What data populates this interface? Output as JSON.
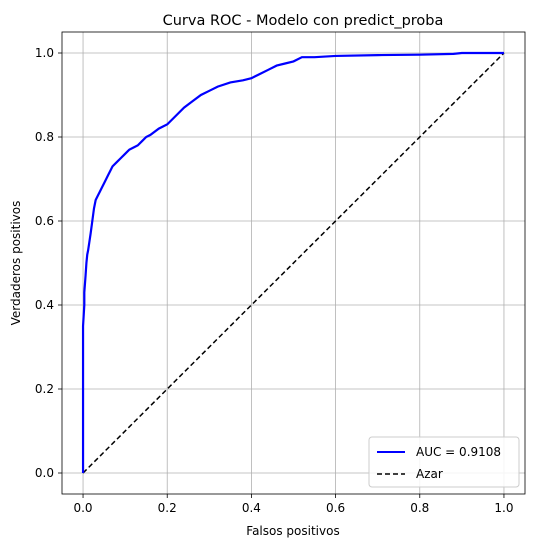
{
  "chart_data": {
    "type": "line",
    "title": "Curva ROC - Modelo con predict_proba",
    "xlabel": "Falsos positivos",
    "ylabel": "Verdaderos positivos",
    "xlim": [
      -0.05,
      1.05
    ],
    "ylim": [
      -0.05,
      1.05
    ],
    "xticks": [
      0.0,
      0.2,
      0.4,
      0.6,
      0.8,
      1.0
    ],
    "yticks": [
      0.0,
      0.2,
      0.4,
      0.6,
      0.8,
      1.0
    ],
    "xtick_labels": [
      "0.0",
      "0.2",
      "0.4",
      "0.6",
      "0.8",
      "1.0"
    ],
    "ytick_labels": [
      "0.0",
      "0.2",
      "0.4",
      "0.6",
      "0.8",
      "1.0"
    ],
    "grid": true,
    "legend_position": "lower-right",
    "series": [
      {
        "name": "AUC = 0.9108",
        "color": "#0000ff",
        "style": "solid",
        "x": [
          0.0,
          0.0,
          0.003,
          0.003,
          0.006,
          0.008,
          0.01,
          0.012,
          0.015,
          0.018,
          0.022,
          0.026,
          0.03,
          0.035,
          0.04,
          0.045,
          0.05,
          0.055,
          0.06,
          0.065,
          0.07,
          0.08,
          0.09,
          0.1,
          0.11,
          0.12,
          0.13,
          0.14,
          0.15,
          0.16,
          0.18,
          0.2,
          0.22,
          0.24,
          0.26,
          0.28,
          0.3,
          0.32,
          0.35,
          0.38,
          0.4,
          0.42,
          0.44,
          0.46,
          0.48,
          0.5,
          0.52,
          0.55,
          0.6,
          0.7,
          0.8,
          0.88,
          0.9,
          1.0
        ],
        "y": [
          0.0,
          0.35,
          0.4,
          0.43,
          0.47,
          0.5,
          0.52,
          0.53,
          0.55,
          0.57,
          0.6,
          0.63,
          0.65,
          0.66,
          0.67,
          0.68,
          0.69,
          0.7,
          0.71,
          0.72,
          0.73,
          0.74,
          0.75,
          0.76,
          0.77,
          0.775,
          0.78,
          0.79,
          0.8,
          0.805,
          0.82,
          0.83,
          0.85,
          0.87,
          0.885,
          0.9,
          0.91,
          0.92,
          0.93,
          0.935,
          0.94,
          0.95,
          0.96,
          0.97,
          0.975,
          0.98,
          0.99,
          0.99,
          0.993,
          0.995,
          0.996,
          0.998,
          1.0,
          1.0
        ]
      },
      {
        "name": "Azar",
        "color": "#000000",
        "style": "dashed",
        "x": [
          0.0,
          1.0
        ],
        "y": [
          0.0,
          1.0
        ]
      }
    ]
  }
}
